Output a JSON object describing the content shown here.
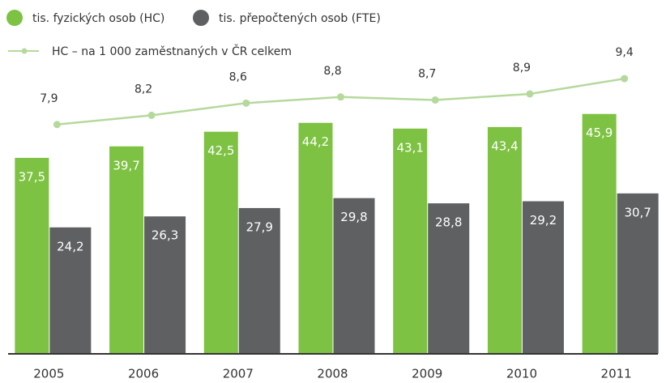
{
  "chart_data": {
    "type": "bar",
    "categories": [
      "2005",
      "2006",
      "2007",
      "2008",
      "2009",
      "2010",
      "2011"
    ],
    "ylim": [
      0,
      55
    ],
    "y2lim": [
      0.4,
      9.8
    ],
    "series": [
      {
        "name": "tis. fyzických osob (HC)",
        "color": "#7dc242",
        "values": [
          37.5,
          39.7,
          42.5,
          44.2,
          43.1,
          43.4,
          45.9
        ],
        "value_labels": [
          "37,5",
          "39,7",
          "42,5",
          "44,2",
          "43,1",
          "43,4",
          "45,9"
        ]
      },
      {
        "name": "tis. přepočtených osob (FTE)",
        "color": "#5f6062",
        "values": [
          24.2,
          26.3,
          27.9,
          29.8,
          28.8,
          29.2,
          30.7
        ],
        "value_labels": [
          "24,2",
          "26,3",
          "27,9",
          "29,8",
          "28,8",
          "29,2",
          "30,7"
        ]
      },
      {
        "name": "HC – na 1 000 zaměstnaných v ČR celkem",
        "color": "#b5d99c",
        "type": "line",
        "axis": "y2",
        "values": [
          7.9,
          8.2,
          8.6,
          8.8,
          8.7,
          8.9,
          9.4
        ],
        "value_labels": [
          "7,9",
          "8,2",
          "8,6",
          "8,8",
          "8,7",
          "8,9",
          "9,4"
        ]
      }
    ]
  }
}
